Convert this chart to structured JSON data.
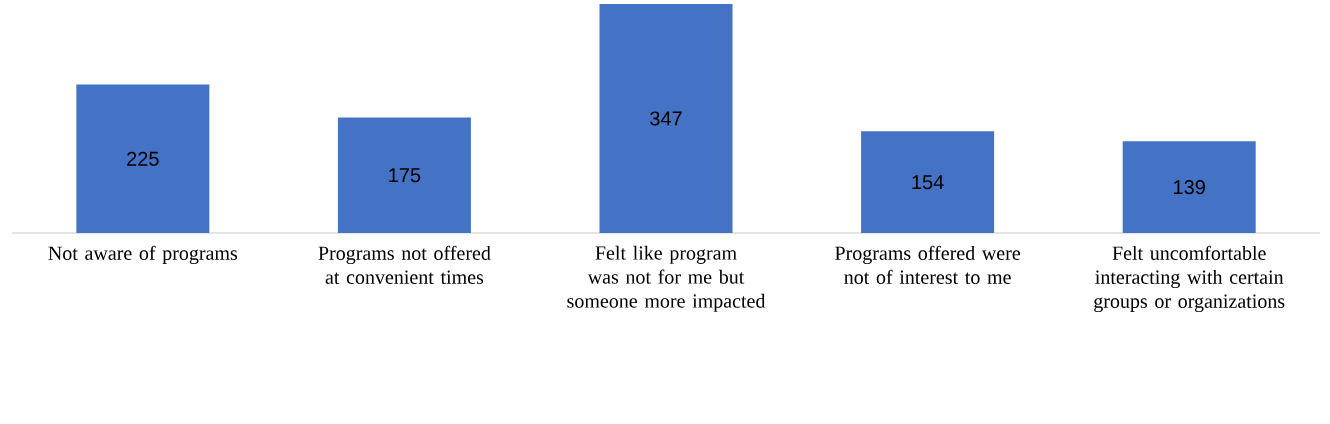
{
  "chart_data": {
    "type": "bar",
    "categories": [
      "Not aware of programs",
      "Programs not offered at convenient times",
      "Felt like program was not for me but someone more impacted",
      "Programs offered were not of interest to me",
      "Felt uncomfortable interacting with certain groups or organizations"
    ],
    "values": [
      225,
      175,
      347,
      154,
      139
    ],
    "color": "#4472c4",
    "data_labels": true
  }
}
